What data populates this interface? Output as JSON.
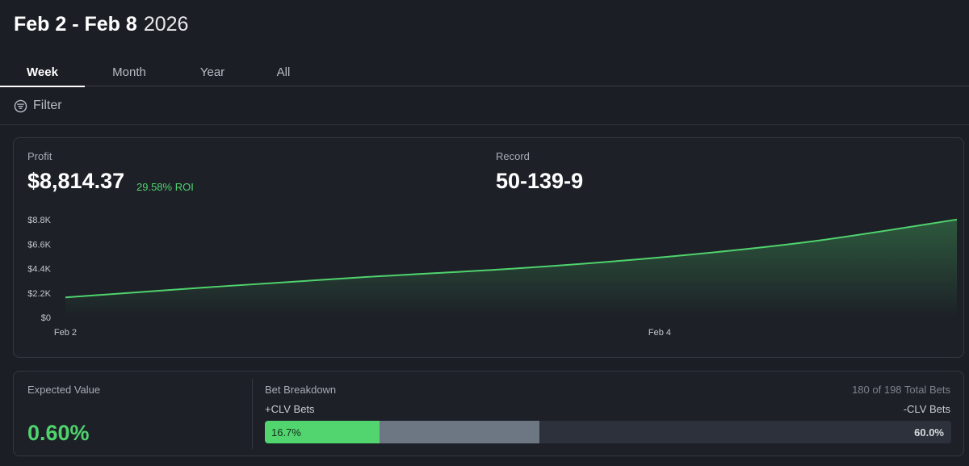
{
  "header": {
    "date_range": "Feb 2 - Feb 8",
    "year": "2026"
  },
  "tabs": [
    {
      "label": "Week",
      "active": true
    },
    {
      "label": "Month",
      "active": false
    },
    {
      "label": "Year",
      "active": false
    },
    {
      "label": "All",
      "active": false
    }
  ],
  "filter": {
    "label": "Filter",
    "icon": "filter-icon"
  },
  "profit": {
    "label": "Profit",
    "value": "$8,814.37",
    "roi": "29.58% ROI"
  },
  "record": {
    "label": "Record",
    "value": "50-139-9"
  },
  "chart_data": {
    "type": "area",
    "title": "",
    "xlabel": "",
    "ylabel": "",
    "y_ticks": [
      "$0",
      "$2.2K",
      "$4.4K",
      "$6.6K",
      "$8.8K"
    ],
    "y_tick_values": [
      0,
      2200,
      4400,
      6600,
      8800
    ],
    "x_ticks": [
      "Feb 2",
      "Feb 4"
    ],
    "x_tick_values": [
      0,
      2
    ],
    "ylim": [
      0,
      8800
    ],
    "xlim": [
      0,
      3
    ],
    "x": [
      0,
      0.5,
      1,
      1.5,
      2,
      2.5,
      3
    ],
    "series": [
      {
        "values": [
          1800,
          2750,
          3620,
          4380,
          5400,
          6800,
          8814.37
        ]
      }
    ],
    "grid": false,
    "line_color": "#4fd36d"
  },
  "expected_value": {
    "label": "Expected Value",
    "value": "0.60%"
  },
  "bet_breakdown": {
    "label": "Bet Breakdown",
    "total_text": "180 of 198 Total Bets",
    "plus_label": "+CLV Bets",
    "minus_label": "-CLV Bets",
    "plus_pct": 16.7,
    "neutral_pct": 23.3,
    "minus_pct": 60.0,
    "plus_text": "16.7%",
    "minus_text": "60.0%",
    "colors": {
      "plus": "#52d46e",
      "neutral": "#6d7683",
      "minus": "#2d313b"
    }
  }
}
